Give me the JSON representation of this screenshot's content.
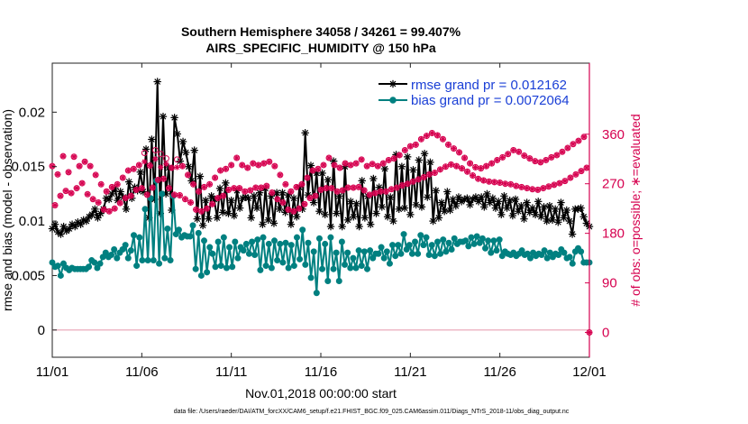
{
  "chart_data": {
    "type": "line",
    "title_line1": "Southern Hemisphere 34058 / 34261 = 99.407%",
    "title_line2": "AIRS_SPECIFIC_HUMIDITY @ 150 hPa",
    "xlabel": "Nov.01,2018 00:00:00 start",
    "ylabel_left": "rmse and bias (model - observation)",
    "ylabel_right": "# of obs: o=possible; ∗=evaluated",
    "footer": "data file: /Users/raeder/DAI/ATM_forcXX/CAM6_setup/f.e21.FHIST_BGC.f09_025.CAM6assim.011/Diags_NTrS_2018-11/obs_diag_output.nc",
    "x_range": [
      0,
      30
    ],
    "ylim_left": [
      -0.0025,
      0.0245
    ],
    "ylim_right": [
      -45,
      489
    ],
    "xtick_positions": [
      0,
      5,
      10,
      15,
      20,
      25,
      30
    ],
    "xtick_labels": [
      "11/01",
      "11/06",
      "11/11",
      "11/16",
      "11/21",
      "11/26",
      "12/01"
    ],
    "ytick_left_values": [
      0,
      0.005,
      0.01,
      0.015,
      0.02
    ],
    "ytick_left_labels": [
      "0",
      "0.005",
      "0.01",
      "0.015",
      "0.02"
    ],
    "ytick_right_values": [
      0,
      90,
      180,
      270,
      360
    ],
    "ytick_right_labels": [
      "0",
      "90",
      "180",
      "270",
      "360"
    ],
    "colors": {
      "rmse": "#000000",
      "bias": "#008080",
      "obs": "#d6004f",
      "zero": "#e8a0b4",
      "legend_text": "#1a3fd6"
    },
    "series": [
      {
        "name": "rmse grand pr = 0.012162",
        "axis": "left",
        "color": "#000000",
        "values": [
          0.0093,
          0.0097,
          0.009,
          0.0088,
          0.0095,
          0.0091,
          0.0093,
          0.0097,
          0.0095,
          0.0099,
          0.0097,
          0.0101,
          0.01,
          0.0104,
          0.0106,
          0.0111,
          0.0103,
          0.0107,
          0.0111,
          0.0121,
          0.012,
          0.0125,
          0.013,
          0.0119,
          0.0127,
          0.0122,
          0.0111,
          0.0136,
          0.0121,
          0.0131,
          0.0128,
          0.0145,
          0.0127,
          0.0166,
          0.0103,
          0.0175,
          0.012,
          0.0228,
          0.0107,
          0.0196,
          0.0125,
          0.0149,
          0.011,
          0.0195,
          0.018,
          0.0155,
          0.0173,
          0.0163,
          0.015,
          0.0137,
          0.0165,
          0.0102,
          0.0141,
          0.0096,
          0.0119,
          0.0102,
          0.0123,
          0.012,
          0.0103,
          0.013,
          0.0108,
          0.0135,
          0.0107,
          0.0119,
          0.0105,
          0.0128,
          0.0112,
          0.0121,
          0.0122,
          0.0121,
          0.0103,
          0.0123,
          0.0112,
          0.0126,
          0.0097,
          0.013,
          0.0101,
          0.0123,
          0.0098,
          0.0126,
          0.0111,
          0.0126,
          0.0108,
          0.0124,
          0.0097,
          0.0121,
          0.0104,
          0.0131,
          0.0111,
          0.0181,
          0.0124,
          0.0151,
          0.0117,
          0.0144,
          0.0109,
          0.0144,
          0.0106,
          0.0138,
          0.0095,
          0.0155,
          0.0107,
          0.0123,
          0.0095,
          0.015,
          0.0101,
          0.0118,
          0.0104,
          0.0116,
          0.0095,
          0.0137,
          0.0103,
          0.0123,
          0.0097,
          0.0139,
          0.0107,
          0.0131,
          0.0113,
          0.0148,
          0.0104,
          0.0122,
          0.01,
          0.0161,
          0.0111,
          0.015,
          0.0112,
          0.0159,
          0.0106,
          0.0147,
          0.0115,
          0.0156,
          0.0113,
          0.0162,
          0.0122,
          0.0154,
          0.01,
          0.0128,
          0.0103,
          0.0117,
          0.0109,
          0.0127,
          0.011,
          0.012,
          0.0114,
          0.0122,
          0.0118,
          0.012,
          0.0121,
          0.0115,
          0.012,
          0.0122,
          0.0118,
          0.0122,
          0.0113,
          0.0125,
          0.0117,
          0.0121,
          0.0112,
          0.0118,
          0.0106,
          0.0123,
          0.0112,
          0.0119,
          0.0105,
          0.012,
          0.0109,
          0.0114,
          0.0102,
          0.0117,
          0.0108,
          0.0112,
          0.0106,
          0.0118,
          0.0104,
          0.0113,
          0.01,
          0.0114,
          0.0101,
          0.0111,
          0.0099,
          0.0117,
          0.0103,
          0.011,
          0.01,
          0.0088,
          0.0111,
          0.0111,
          0.0112,
          0.0104,
          0.0098,
          0.0095
        ]
      },
      {
        "name": "bias grand pr = 0.0072064",
        "axis": "left",
        "color": "#008080",
        "values": [
          0.0062,
          0.0058,
          0.0059,
          0.005,
          0.0061,
          0.0057,
          0.0055,
          0.0057,
          0.0056,
          0.0056,
          0.0056,
          0.0056,
          0.0056,
          0.0058,
          0.0064,
          0.0062,
          0.0057,
          0.0061,
          0.0067,
          0.0071,
          0.0067,
          0.0069,
          0.0074,
          0.0066,
          0.0071,
          0.0074,
          0.0078,
          0.0066,
          0.0073,
          0.0087,
          0.0059,
          0.0085,
          0.0064,
          0.0111,
          0.0064,
          0.0121,
          0.0064,
          0.0137,
          0.0061,
          0.0125,
          0.0066,
          0.0093,
          0.0064,
          0.0123,
          0.0088,
          0.0092,
          0.0085,
          0.0087,
          0.0086,
          0.0086,
          0.0096,
          0.0056,
          0.0089,
          0.005,
          0.0082,
          0.0053,
          0.0076,
          0.007,
          0.0058,
          0.0081,
          0.0059,
          0.0085,
          0.0057,
          0.0076,
          0.0058,
          0.0081,
          0.0066,
          0.0076,
          0.0073,
          0.0079,
          0.007,
          0.0081,
          0.0069,
          0.0083,
          0.0055,
          0.0085,
          0.0059,
          0.0079,
          0.0057,
          0.0082,
          0.0064,
          0.0079,
          0.0062,
          0.008,
          0.0057,
          0.0078,
          0.0059,
          0.0085,
          0.0065,
          0.0092,
          0.006,
          0.008,
          0.0048,
          0.0072,
          0.0034,
          0.0084,
          0.0056,
          0.0079,
          0.0045,
          0.0085,
          0.0056,
          0.0071,
          0.0045,
          0.0081,
          0.006,
          0.0071,
          0.0057,
          0.0066,
          0.0057,
          0.0073,
          0.0059,
          0.0072,
          0.0056,
          0.0073,
          0.0066,
          0.007,
          0.007,
          0.0076,
          0.0066,
          0.0072,
          0.0061,
          0.0078,
          0.0068,
          0.0078,
          0.007,
          0.0088,
          0.0074,
          0.0078,
          0.007,
          0.0081,
          0.007,
          0.0087,
          0.0078,
          0.0085,
          0.0069,
          0.0078,
          0.0068,
          0.0081,
          0.007,
          0.0083,
          0.0072,
          0.008,
          0.0074,
          0.0084,
          0.0079,
          0.0081,
          0.0081,
          0.0082,
          0.0077,
          0.0085,
          0.0079,
          0.0086,
          0.008,
          0.0084,
          0.0075,
          0.0082,
          0.0071,
          0.0082,
          0.0073,
          0.0083,
          0.0068,
          0.0072,
          0.007,
          0.0069,
          0.0071,
          0.0068,
          0.007,
          0.0073,
          0.0069,
          0.007,
          0.0066,
          0.0071,
          0.0068,
          0.007,
          0.0069,
          0.0073,
          0.0066,
          0.0071,
          0.0067,
          0.007,
          0.0069,
          0.0074,
          0.0071,
          0.0066,
          0.0067,
          0.0061,
          0.0072,
          0.0075,
          0.0072,
          0.0062,
          0.0062,
          0.0062
        ]
      },
      {
        "name": "# of obs possible",
        "axis": "right",
        "marker": "o",
        "values": [
          302,
          231,
          287,
          248,
          320,
          257,
          291,
          253,
          319,
          262,
          302,
          271,
          310,
          251,
          302,
          242,
          286,
          236,
          269,
          223,
          256,
          220,
          264,
          225,
          269,
          235,
          281,
          244,
          294,
          248,
          297,
          259,
          304,
          262,
          326,
          250,
          303,
          263,
          331,
          277,
          324,
          279,
          316,
          262,
          299,
          250,
          314,
          249,
          302,
          242,
          286,
          236,
          269,
          223,
          256,
          220,
          264,
          225,
          269,
          233,
          281,
          244,
          294,
          248,
          297,
          259,
          304,
          262,
          317,
          262,
          304,
          256,
          299,
          258,
          307,
          263,
          304,
          263,
          307,
          266,
          310,
          254,
          302,
          242,
          286,
          236,
          269,
          223,
          256,
          220,
          264,
          225,
          269,
          233,
          281,
          244,
          294,
          248,
          297,
          259,
          304,
          262,
          317,
          262,
          304,
          256,
          299,
          258,
          307,
          263,
          304,
          263,
          307,
          264,
          314,
          258,
          302,
          250,
          306,
          253,
          302,
          256,
          307,
          256,
          313,
          260,
          316,
          263,
          322,
          267,
          331,
          270,
          338,
          274,
          341,
          278,
          351,
          282,
          357,
          287,
          362,
          290,
          358,
          296,
          351,
          301,
          341,
          305,
          334,
          302,
          327,
          298,
          317,
          292,
          307,
          285,
          300,
          279,
          298,
          276,
          302,
          274,
          307,
          273,
          313,
          272,
          318,
          270,
          324,
          269,
          331,
          266,
          328,
          264,
          321,
          262,
          316,
          260,
          311,
          259,
          309,
          262,
          313,
          265,
          318,
          268,
          322,
          271,
          328,
          275,
          335,
          281,
          342,
          287,
          348,
          293,
          355,
          299,
          0
        ]
      },
      {
        "name": "# of obs evaluated",
        "axis": "right",
        "marker": "*",
        "values": [
          302,
          231,
          287,
          248,
          320,
          257,
          291,
          253,
          319,
          262,
          302,
          271,
          310,
          251,
          302,
          242,
          286,
          236,
          269,
          223,
          256,
          220,
          264,
          225,
          269,
          235,
          281,
          244,
          294,
          248,
          297,
          259,
          304,
          262,
          310,
          250,
          303,
          263,
          315,
          277,
          300,
          279,
          306,
          262,
          299,
          250,
          300,
          249,
          302,
          242,
          286,
          236,
          269,
          223,
          256,
          220,
          264,
          225,
          269,
          233,
          281,
          244,
          294,
          248,
          297,
          259,
          304,
          262,
          317,
          262,
          304,
          256,
          299,
          258,
          307,
          263,
          304,
          263,
          307,
          266,
          310,
          254,
          302,
          242,
          286,
          236,
          269,
          223,
          256,
          220,
          264,
          225,
          269,
          233,
          281,
          244,
          294,
          248,
          297,
          259,
          304,
          262,
          317,
          262,
          304,
          256,
          299,
          258,
          307,
          263,
          304,
          263,
          307,
          264,
          314,
          258,
          302,
          250,
          306,
          253,
          302,
          256,
          307,
          256,
          313,
          260,
          316,
          263,
          322,
          267,
          331,
          270,
          338,
          274,
          341,
          278,
          351,
          282,
          357,
          287,
          362,
          290,
          358,
          296,
          351,
          301,
          341,
          305,
          334,
          302,
          327,
          298,
          317,
          292,
          307,
          285,
          300,
          279,
          298,
          276,
          302,
          274,
          307,
          273,
          313,
          272,
          318,
          270,
          324,
          269,
          331,
          266,
          328,
          264,
          321,
          262,
          316,
          260,
          311,
          259,
          309,
          262,
          313,
          265,
          318,
          268,
          322,
          271,
          328,
          275,
          335,
          281,
          342,
          287,
          348,
          293,
          355,
          299,
          0
        ]
      }
    ],
    "legend": [
      "rmse grand pr = 0.012162",
      "bias grand pr = 0.0072064"
    ],
    "legend_position": "top-right"
  }
}
